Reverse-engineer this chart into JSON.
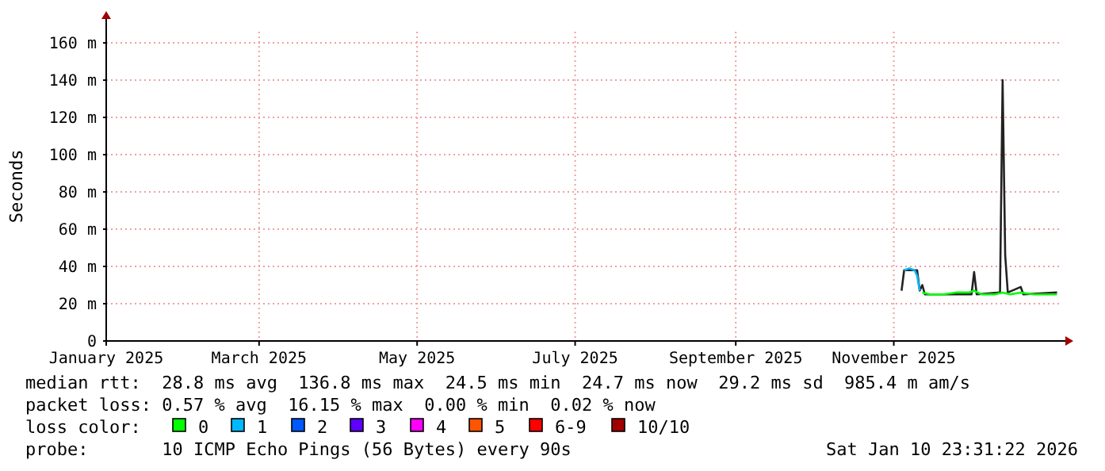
{
  "chart_data": {
    "type": "line",
    "ylabel": "Seconds",
    "legend_title": "loss color:",
    "legend": "bottom",
    "grid": true,
    "xlim": [
      "2025-01-01",
      "2026-01-05"
    ],
    "ylim": [
      0,
      166
    ],
    "xticks": [
      {
        "value": "2025-01-01",
        "label": "January 2025"
      },
      {
        "value": "2025-03-01",
        "label": "March 2025"
      },
      {
        "value": "2025-05-01",
        "label": "May 2025"
      },
      {
        "value": "2025-07-01",
        "label": "July 2025"
      },
      {
        "value": "2025-09-01",
        "label": "September 2025"
      },
      {
        "value": "2025-11-01",
        "label": "November 2025"
      }
    ],
    "yticks": [
      0,
      {
        "value": 20,
        "label": "20 m"
      },
      {
        "value": 40,
        "label": "40 m"
      },
      {
        "value": 60,
        "label": "60 m"
      },
      {
        "value": 80,
        "label": "80 m"
      },
      {
        "value": 100,
        "label": "100 m"
      },
      {
        "value": 120,
        "label": "120 m"
      },
      {
        "value": 140,
        "label": "140 m"
      },
      {
        "value": 160,
        "label": "160 m"
      }
    ],
    "series": [
      {
        "color": "#222222",
        "x": [
          "2025-11-04",
          "2025-11-05",
          "2025-11-10",
          "2025-11-11",
          "2025-11-12",
          "2025-11-13",
          "2025-12-01",
          "2025-12-02",
          "2025-12-03",
          "2025-12-12",
          "2025-12-13",
          "2025-12-14",
          "2025-12-15",
          "2025-12-20",
          "2025-12-21",
          "2026-01-03"
        ],
        "values": [
          27,
          38,
          38,
          27,
          30,
          25,
          25,
          37,
          25,
          26,
          140,
          46,
          26,
          29,
          25,
          26
        ]
      },
      {
        "name": "0",
        "color": "#00ff00",
        "x": [
          "2025-11-12",
          "2025-11-15",
          "2025-11-20",
          "2025-11-25",
          "2025-11-30",
          "2025-12-02",
          "2025-12-05",
          "2025-12-10",
          "2025-12-13",
          "2025-12-16",
          "2025-12-20",
          "2025-12-25",
          "2025-12-30",
          "2026-01-03"
        ],
        "values": [
          26,
          25,
          25,
          26,
          26,
          27,
          25,
          25,
          26,
          25,
          26,
          25,
          25,
          25
        ]
      },
      {
        "name": "1",
        "color": "#00b8ff",
        "x": [
          "2025-11-05",
          "2025-11-07",
          "2025-11-09",
          "2025-11-10",
          "2025-11-11"
        ],
        "values": [
          38,
          39,
          38,
          35,
          27
        ]
      },
      {
        "name": "2",
        "color": "#0059ff"
      },
      {
        "name": "3",
        "color": "#5e00ff"
      },
      {
        "name": "4",
        "color": "#ff00ff"
      },
      {
        "name": "5",
        "color": "#ff5500"
      },
      {
        "name": "6-9",
        "color": "#ff0000"
      },
      {
        "name": "10/10",
        "color": "#a10000"
      }
    ],
    "annotations": [
      "median rtt:  28.8 ms avg  136.8 ms max  24.5 ms min  24.7 ms now  29.2 ms sd  985.4 m am/s",
      "packet loss: 0.57 % avg  16.15 % max  0.00 % min  0.02 % now",
      "probe:       10 ICMP Echo Pings (56 Bytes) every 90s",
      "Sat Jan 10 23:31:22 2026"
    ]
  }
}
